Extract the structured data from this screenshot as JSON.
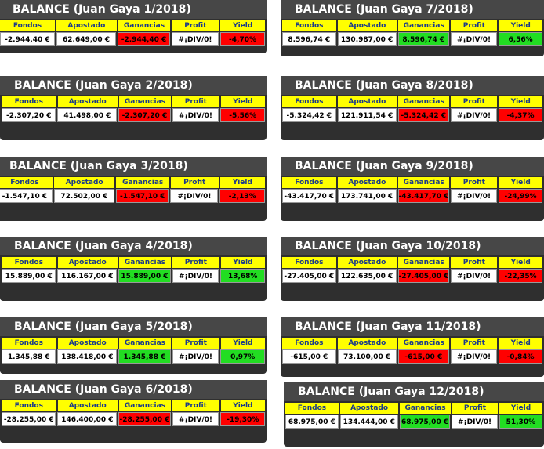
{
  "headers": [
    "Fondos",
    "Apostado",
    "Ganancias",
    "Profit",
    "Yield"
  ],
  "panels": [
    {
      "title": "BALANCE (Juan Gaya 1/2018)",
      "row": [
        "-2.944,40 €",
        "62.649,00 €",
        "-2.944,40 €",
        "#¡DIV/0!",
        "-4,70%"
      ],
      "color": "#ff0000"
    },
    {
      "title": "BALANCE (Juan Gaya 2/2018)",
      "row": [
        "-2.307,20 €",
        "41.498,00 €",
        "-2.307,20 €",
        "#¡DIV/0!",
        "-5,56%"
      ],
      "color": "#ff0000"
    },
    {
      "title": "BALANCE (Juan Gaya 3/2018)",
      "row": [
        "-1.547,10 €",
        "72.502,00 €",
        "-1.547,10 €",
        "#¡DIV/0!",
        "-2,13%"
      ],
      "color": "#ff0000"
    },
    {
      "title": "BALANCE (Juan Gaya 4/2018)",
      "row": [
        "15.889,00 €",
        "116.167,00 €",
        "15.889,00 €",
        "#¡DIV/0!",
        "13,68%"
      ],
      "color": "#22dd22"
    },
    {
      "title": "BALANCE (Juan Gaya 5/2018)",
      "row": [
        "1.345,88 €",
        "138.418,00 €",
        "1.345,88 €",
        "#¡DIV/0!",
        "0,97%"
      ],
      "color": "#22dd22"
    },
    {
      "title": "BALANCE (Juan Gaya 6/2018)",
      "row": [
        "-28.255,00 €",
        "146.400,00 €",
        "-28.255,00 €",
        "#¡DIV/0!",
        "-19,30%"
      ],
      "color": "#ff0000"
    },
    {
      "title": "BALANCE (Juan Gaya 7/2018)",
      "row": [
        "8.596,74 €",
        "130.987,00 €",
        "8.596,74 €",
        "#¡DIV/0!",
        "6,56%"
      ],
      "color": "#22dd22"
    },
    {
      "title": "BALANCE (Juan Gaya 8/2018)",
      "row": [
        "-5.324,42 €",
        "121.911,54 €",
        "-5.324,42 €",
        "#¡DIV/0!",
        "-4,37%"
      ],
      "color": "#ff0000"
    },
    {
      "title": "BALANCE (Juan Gaya 9/2018)",
      "row": [
        "-43.417,70 €",
        "173.741,00 €",
        "-43.417,70 €",
        "#¡DIV/0!",
        "-24,99%"
      ],
      "color": "#ff0000"
    },
    {
      "title": "BALANCE (Juan Gaya 10/2018)",
      "row": [
        "-27.405,00 €",
        "122.635,00 €",
        "-27.405,00 €",
        "#¡DIV/0!",
        "-22,35%"
      ],
      "color": "#ff0000"
    },
    {
      "title": "BALANCE (Juan Gaya 11/2018)",
      "row": [
        "-615,00 €",
        "73.100,00 €",
        "-615,00 €",
        "#¡DIV/0!",
        "-0,84%"
      ],
      "color": "#ff0000"
    },
    {
      "title": "BALANCE (Juan Gaya 12/2018)",
      "row": [
        "68.975,00 €",
        "134.444,00 €",
        "68.975,00 €",
        "#¡DIV/0!",
        "51,30%"
      ],
      "color": "#22dd22"
    }
  ]
}
